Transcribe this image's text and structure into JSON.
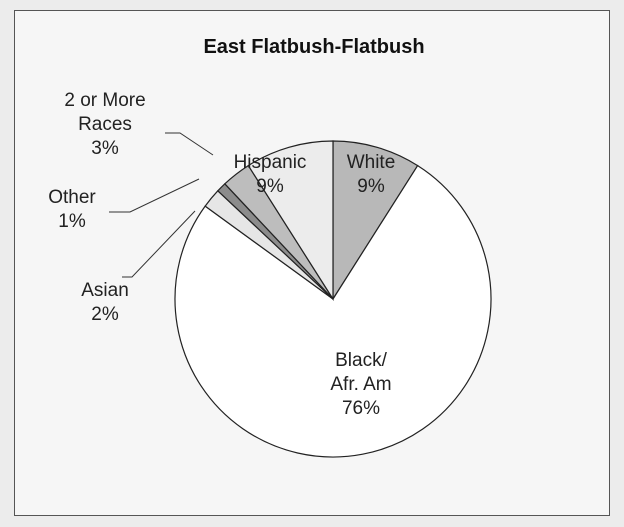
{
  "chart_data": {
    "type": "pie",
    "title": "East Flatbush-Flatbush",
    "slices": [
      {
        "label": "White",
        "value": 9,
        "value_label": "9%",
        "color": "#b8b8b8"
      },
      {
        "label": "Black/ Afr. Am",
        "label_lines": [
          "Black/",
          "Afr. Am"
        ],
        "value": 76,
        "value_label": "76%",
        "color": "#ffffff"
      },
      {
        "label": "Asian",
        "value": 2,
        "value_label": "2%",
        "color": "#e6e6e6"
      },
      {
        "label": "Other",
        "value": 1,
        "value_label": "1%",
        "color": "#8c8c8c"
      },
      {
        "label": "2 or More Races",
        "label_lines": [
          "2 or More",
          "Races"
        ],
        "value": 3,
        "value_label": "3%",
        "color": "#bdbdbd"
      },
      {
        "label": "Hispanic",
        "value": 9,
        "value_label": "9%",
        "color": "#ececec"
      }
    ],
    "legend": "none"
  }
}
